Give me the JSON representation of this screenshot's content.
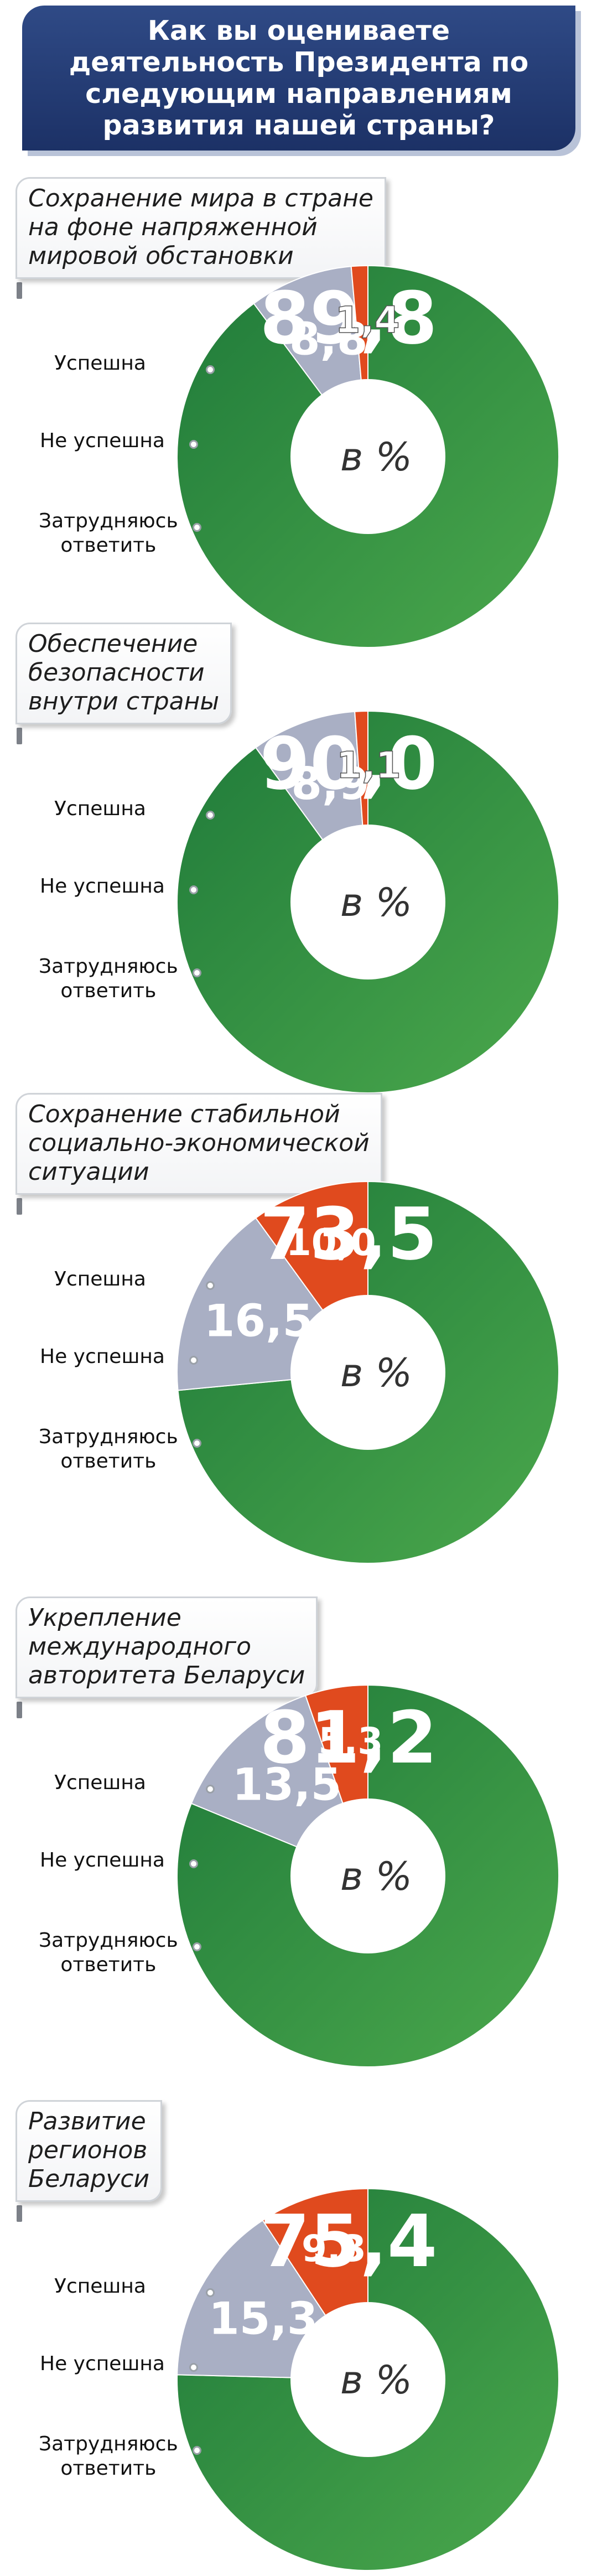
{
  "header": {
    "lines": [
      "Как вы оцениваете",
      "деятельность Президента по",
      "следующим направлениям",
      "развития нашей страны?"
    ]
  },
  "unit_label": "в %",
  "legend": {
    "success": "Успешна",
    "fail": "Не успешна",
    "undecided_line1": "Затрудняюсь",
    "undecided_line2": "ответить"
  },
  "colors": {
    "success": "#2e8b3e",
    "fail": "#e04a1e",
    "undecided": "#a9afc4"
  },
  "sections": [
    {
      "title_lines": [
        "Сохранение мира в стране",
        "на фоне напряженной",
        "мировой обстановки"
      ],
      "success": "89,8",
      "fail": "1,4",
      "undecided": "8,8"
    },
    {
      "title_lines": [
        "Обеспечение",
        "безопасности",
        "внутри страны"
      ],
      "success": "90,0",
      "fail": "1,1",
      "undecided": "8,9"
    },
    {
      "title_lines": [
        "Сохранение стабильной",
        "социально-экономической",
        "ситуации"
      ],
      "success": "73,5",
      "fail": "10,0",
      "undecided": "16,5"
    },
    {
      "title_lines": [
        "Укрепление",
        "международного",
        "авторитета Беларуси"
      ],
      "success": "81,2",
      "fail": "5,3",
      "undecided": "13,5"
    },
    {
      "title_lines": [
        "Развитие",
        "регионов",
        "Беларуси"
      ],
      "success": "75,4",
      "fail": "9,3",
      "undecided": "15,3"
    }
  ],
  "chart_data": [
    {
      "type": "pie",
      "title": "Сохранение мира в стране на фоне напряженной мировой обстановки",
      "categories": [
        "Успешна",
        "Не успешна",
        "Затрудняюсь ответить"
      ],
      "values": [
        89.8,
        1.4,
        8.8
      ]
    },
    {
      "type": "pie",
      "title": "Обеспечение безопасности внутри страны",
      "categories": [
        "Успешна",
        "Не успешна",
        "Затрудняюсь ответить"
      ],
      "values": [
        90.0,
        1.1,
        8.9
      ]
    },
    {
      "type": "pie",
      "title": "Сохранение стабильной социально-экономической ситуации",
      "categories": [
        "Успешна",
        "Не успешна",
        "Затрудняюсь ответить"
      ],
      "values": [
        73.5,
        10.0,
        16.5
      ]
    },
    {
      "type": "pie",
      "title": "Укрепление международного авторитета Беларуси",
      "categories": [
        "Успешна",
        "Не успешна",
        "Затрудняюсь ответить"
      ],
      "values": [
        81.2,
        5.3,
        13.5
      ]
    },
    {
      "type": "pie",
      "title": "Развитие регионов Беларуси",
      "categories": [
        "Успешна",
        "Не успешна",
        "Затрудняюсь ответить"
      ],
      "values": [
        75.4,
        9.3,
        15.3
      ]
    }
  ]
}
